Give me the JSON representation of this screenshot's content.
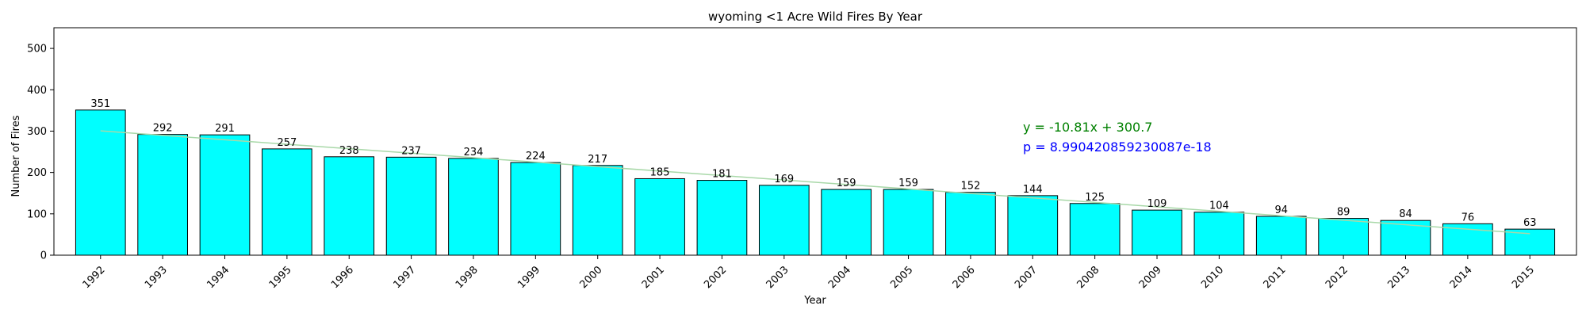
{
  "chart_data": {
    "type": "bar",
    "title": "wyoming <1 Acre Wild Fires By Year",
    "xlabel": "Year",
    "ylabel": "Number of Fires",
    "categories": [
      "1992",
      "1993",
      "1994",
      "1995",
      "1996",
      "1997",
      "1998",
      "1999",
      "2000",
      "2001",
      "2002",
      "2003",
      "2004",
      "2005",
      "2006",
      "2007",
      "2008",
      "2009",
      "2010",
      "2011",
      "2012",
      "2013",
      "2014",
      "2015"
    ],
    "values": [
      351,
      292,
      291,
      257,
      238,
      237,
      234,
      224,
      217,
      185,
      181,
      169,
      159,
      159,
      152,
      144,
      125,
      109,
      104,
      94,
      89,
      84,
      76,
      63
    ],
    "ylim": [
      0,
      550
    ],
    "yticks": [
      0,
      100,
      200,
      300,
      400,
      500
    ],
    "bar_color": "#00ffff",
    "bar_edge_color": "#000000",
    "trendline": {
      "slope": -10.81,
      "intercept": 300.7,
      "color": "#a8d8a8"
    },
    "annotations": {
      "equation": {
        "text": "y = -10.81x + 300.7",
        "color": "#008000"
      },
      "pvalue": {
        "text": "p = 8.990420859230087e-18",
        "color": "#0000ff"
      }
    },
    "grid": false,
    "legend": "none"
  }
}
